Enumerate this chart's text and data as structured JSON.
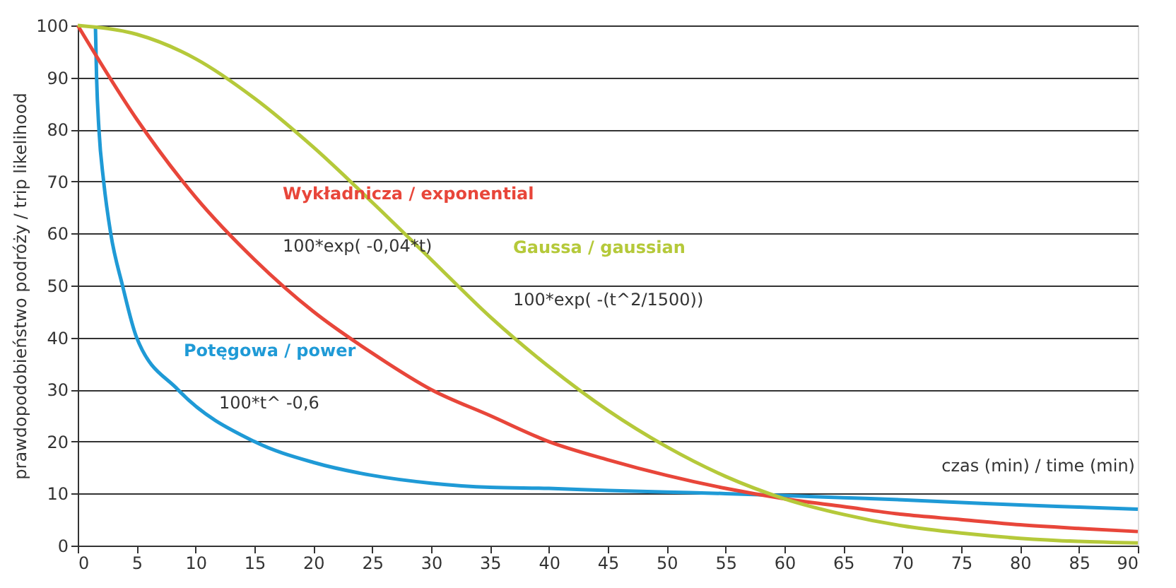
{
  "chart_data": {
    "type": "line",
    "xlabel": "czas (min) / time (min)",
    "ylabel": "prawdopodobieństwo podróży / trip likelihood",
    "xlim": [
      0,
      90
    ],
    "xticks": [
      0,
      5,
      10,
      15,
      20,
      25,
      30,
      35,
      40,
      45,
      50,
      55,
      60,
      65,
      70,
      75,
      80,
      85,
      90
    ],
    "ylim": [
      0,
      100
    ],
    "yticks": [
      0,
      10,
      20,
      30,
      40,
      50,
      60,
      70,
      80,
      90,
      100
    ],
    "grid": "y",
    "legend": false,
    "marker": "none",
    "line_style": "solid",
    "series": [
      {
        "name": "Potęgowa / power",
        "color": "#1f9ad6",
        "x": [
          1.5,
          1.6,
          1.8,
          2.2,
          2.8,
          3.8,
          5,
          8.5,
          15,
          20,
          25,
          30,
          35,
          40,
          45,
          50,
          55,
          60,
          65,
          70,
          75,
          80,
          85,
          90
        ],
        "values": [
          100,
          90,
          80,
          70,
          60,
          50,
          40,
          30,
          20,
          16,
          13.5,
          12,
          11.2,
          11,
          10.6,
          10.3,
          10,
          9.6,
          9.2,
          8.8,
          8.3,
          7.8,
          7.4,
          7
        ]
      },
      {
        "name": "Wykładnicza / exponential",
        "color": "#e8463a",
        "x": [
          0,
          5,
          10,
          15,
          20,
          25,
          30,
          35,
          40,
          45,
          50,
          55,
          60,
          65,
          70,
          75,
          80,
          85,
          90
        ],
        "values": [
          100,
          82,
          67,
          55,
          45,
          37,
          30,
          25,
          20,
          16.5,
          13.5,
          11,
          9,
          7.5,
          6,
          5,
          4,
          3.3,
          2.7
        ]
      },
      {
        "name": "Gaussa / gaussian",
        "color": "#b5c93a",
        "x": [
          0,
          5,
          10,
          15,
          20,
          25,
          30,
          35,
          40,
          45,
          50,
          55,
          60,
          65,
          70,
          75,
          80,
          85,
          90
        ],
        "values": [
          100,
          98.3,
          93.6,
          86,
          76.6,
          66,
          55,
          44,
          34.4,
          26,
          19,
          13.3,
          9,
          6,
          3.8,
          2.4,
          1.4,
          0.8,
          0.5
        ]
      }
    ],
    "annotations": [
      "100*t^ -0,6",
      "100*exp( -0,04*t)",
      "100*exp( -(t^2/1500))"
    ]
  }
}
